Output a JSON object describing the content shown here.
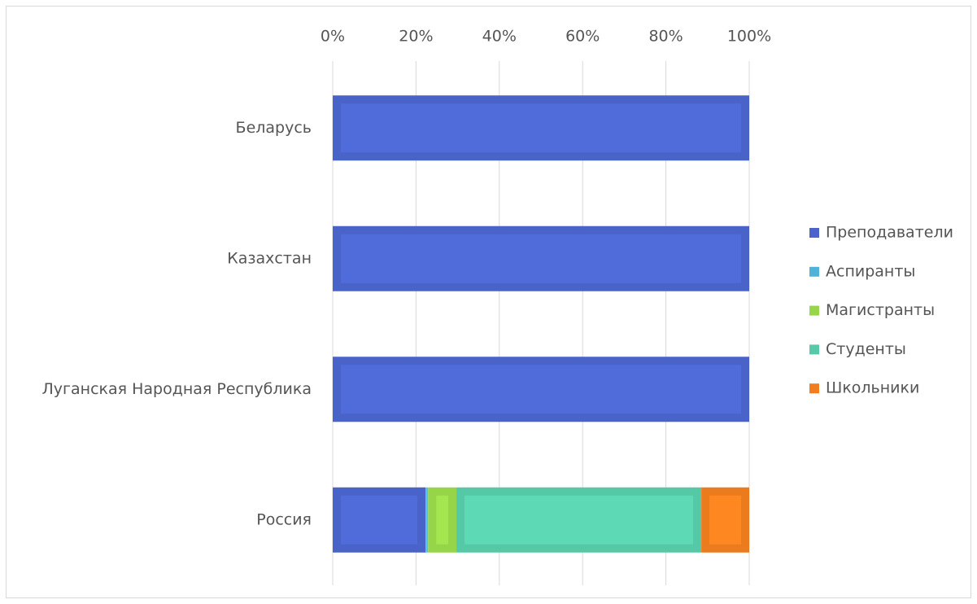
{
  "chart_data": {
    "type": "stacked_bar_horizontal",
    "categories": [
      "Беларусь",
      "Казахстан",
      "Луганская Народная Республика",
      "Россия"
    ],
    "series": [
      {
        "name": "Преподаватели",
        "color": "#4a64cb",
        "values": [
          100,
          100,
          100,
          22.3
        ]
      },
      {
        "name": "Аспиранты",
        "color": "#4db3d8",
        "values": [
          0,
          0,
          0,
          0.6
        ]
      },
      {
        "name": "Магистранты",
        "color": "#97d54a",
        "values": [
          0,
          0,
          0,
          6.8
        ]
      },
      {
        "name": "Студенты",
        "color": "#56c9a8",
        "values": [
          0,
          0,
          0,
          58.8
        ]
      },
      {
        "name": "Школьники",
        "color": "#f07d1f",
        "values": [
          0,
          0,
          0,
          11.5
        ]
      }
    ],
    "xlim": [
      0,
      100
    ],
    "xticks": [
      {
        "value": 0,
        "label": "0%"
      },
      {
        "value": 20,
        "label": "20%"
      },
      {
        "value": 40,
        "label": "40%"
      },
      {
        "value": 60,
        "label": "60%"
      },
      {
        "value": 80,
        "label": "80%"
      },
      {
        "value": 100,
        "label": "100%"
      }
    ],
    "grid": true,
    "legend": "right"
  }
}
